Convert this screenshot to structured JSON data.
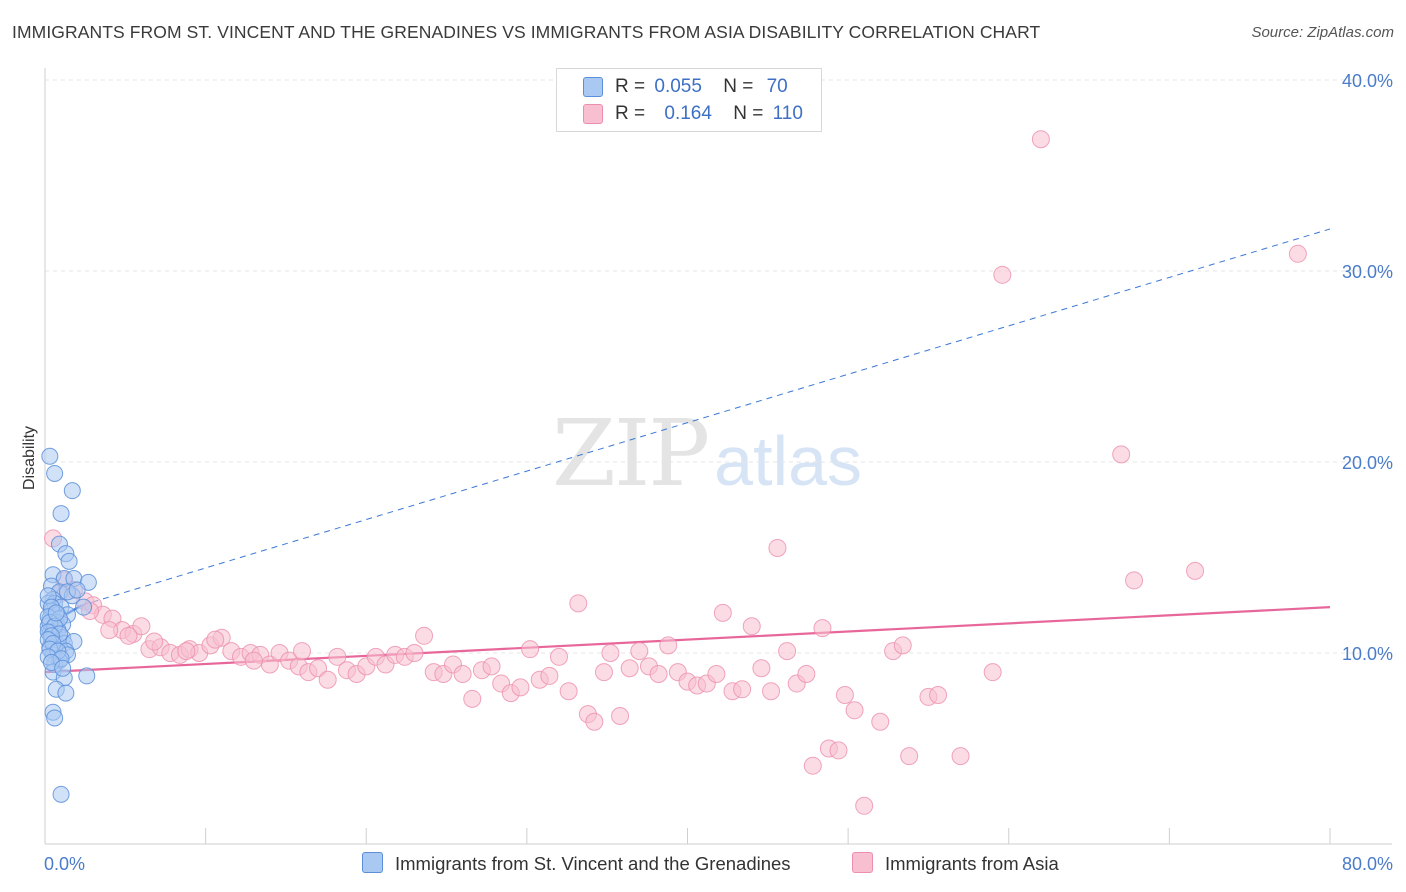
{
  "title": "IMMIGRANTS FROM ST. VINCENT AND THE GRENADINES VS IMMIGRANTS FROM ASIA DISABILITY CORRELATION CHART",
  "source": "Source: ZipAtlas.com",
  "watermark": {
    "zip": "ZIP",
    "atlas": "atlas"
  },
  "legend": {
    "rows": [
      {
        "r_label": "R =",
        "r_value": "0.055",
        "n_label": "N =",
        "n_value": "70"
      },
      {
        "r_label": "R =",
        "r_value": "0.164",
        "n_label": "N =",
        "n_value": "110"
      }
    ]
  },
  "colors": {
    "blue_fill": "#a9c8f2",
    "blue_stroke": "#5b8fd9",
    "blue_line": "#3b78d6",
    "pink_fill": "#f7bfd0",
    "pink_stroke": "#ec8fae",
    "pink_line": "#e8679a",
    "tick_label": "#4a7cc9"
  },
  "chart_data": {
    "type": "scatter",
    "title": "IMMIGRANTS FROM ST. VINCENT AND THE GRENADINES VS IMMIGRANTS FROM ASIA DISABILITY CORRELATION CHART",
    "xlabel": "",
    "ylabel": "Disability",
    "xlim": [
      0,
      80
    ],
    "ylim": [
      0,
      42
    ],
    "x_tick_labels": [
      "0.0%",
      "80.0%"
    ],
    "y_ticks": [
      10,
      20,
      30,
      40
    ],
    "y_tick_labels": [
      "10.0%",
      "20.0%",
      "30.0%",
      "40.0%"
    ],
    "grid": true,
    "legend_position": "top-center",
    "series": [
      {
        "name": "Immigrants from St. Vincent and the Grenadines",
        "r": 0.055,
        "n": 70,
        "trend": {
          "x": [
            0,
            2.3
          ],
          "y": [
            11.4,
            12.5
          ]
        },
        "trend_extension": {
          "x": [
            2.3,
            80
          ],
          "y": [
            12.5,
            32.2
          ]
        },
        "points": [
          [
            0.3,
            20.3
          ],
          [
            0.6,
            19.4
          ],
          [
            1.7,
            18.5
          ],
          [
            1.0,
            17.3
          ],
          [
            0.9,
            15.7
          ],
          [
            1.3,
            15.2
          ],
          [
            1.5,
            14.8
          ],
          [
            0.5,
            14.1
          ],
          [
            1.2,
            13.9
          ],
          [
            1.8,
            13.9
          ],
          [
            2.7,
            13.7
          ],
          [
            0.4,
            13.5
          ],
          [
            0.9,
            13.2
          ],
          [
            1.7,
            13.0
          ],
          [
            0.5,
            12.8
          ],
          [
            0.2,
            12.6
          ],
          [
            0.6,
            12.6
          ],
          [
            1.0,
            12.4
          ],
          [
            2.4,
            12.4
          ],
          [
            0.4,
            12.2
          ],
          [
            0.8,
            12.0
          ],
          [
            1.4,
            12.0
          ],
          [
            0.3,
            11.8
          ],
          [
            0.7,
            11.6
          ],
          [
            1.1,
            11.5
          ],
          [
            0.2,
            11.4
          ],
          [
            0.5,
            11.3
          ],
          [
            0.8,
            11.2
          ],
          [
            0.3,
            11.0
          ],
          [
            0.6,
            10.9
          ],
          [
            1.1,
            10.8
          ],
          [
            0.4,
            10.7
          ],
          [
            0.7,
            10.5
          ],
          [
            1.2,
            10.5
          ],
          [
            1.8,
            10.6
          ],
          [
            0.3,
            10.3
          ],
          [
            0.6,
            10.2
          ],
          [
            1.3,
            10.1
          ],
          [
            0.5,
            9.9
          ],
          [
            1.4,
            9.9
          ],
          [
            0.9,
            9.6
          ],
          [
            0.6,
            9.4
          ],
          [
            0.5,
            9.0
          ],
          [
            2.6,
            8.8
          ],
          [
            1.2,
            8.7
          ],
          [
            0.7,
            8.1
          ],
          [
            1.3,
            7.9
          ],
          [
            0.5,
            6.9
          ],
          [
            0.6,
            6.6
          ],
          [
            1.0,
            2.6
          ],
          [
            0.2,
            13.0
          ],
          [
            0.4,
            12.4
          ],
          [
            0.2,
            11.9
          ],
          [
            0.9,
            11.8
          ],
          [
            0.3,
            11.6
          ],
          [
            0.6,
            11.4
          ],
          [
            0.2,
            11.1
          ],
          [
            0.9,
            11.0
          ],
          [
            0.4,
            10.9
          ],
          [
            0.2,
            10.7
          ],
          [
            0.5,
            10.5
          ],
          [
            0.3,
            10.2
          ],
          [
            0.8,
            10.1
          ],
          [
            0.2,
            9.8
          ],
          [
            1.0,
            9.7
          ],
          [
            0.4,
            9.5
          ],
          [
            1.4,
            13.2
          ],
          [
            2.0,
            13.3
          ],
          [
            0.7,
            12.1
          ],
          [
            1.1,
            9.2
          ]
        ]
      },
      {
        "name": "Immigrants from Asia",
        "r": 0.164,
        "n": 110,
        "trend": {
          "x": [
            0,
            80
          ],
          "y": [
            9.0,
            12.4
          ]
        },
        "points": [
          [
            0.5,
            16.0
          ],
          [
            1.2,
            13.8
          ],
          [
            1.8,
            13.3
          ],
          [
            2.5,
            12.7
          ],
          [
            3.0,
            12.5
          ],
          [
            3.6,
            12.0
          ],
          [
            4.2,
            11.8
          ],
          [
            4.8,
            11.2
          ],
          [
            5.5,
            11.0
          ],
          [
            6.0,
            11.4
          ],
          [
            5.2,
            10.9
          ],
          [
            6.5,
            10.2
          ],
          [
            7.2,
            10.3
          ],
          [
            7.8,
            10.0
          ],
          [
            8.4,
            9.9
          ],
          [
            9.0,
            10.2
          ],
          [
            9.6,
            10.0
          ],
          [
            10.3,
            10.4
          ],
          [
            11.0,
            10.8
          ],
          [
            11.6,
            10.1
          ],
          [
            12.2,
            9.8
          ],
          [
            12.8,
            10.0
          ],
          [
            13.4,
            9.9
          ],
          [
            14.0,
            9.4
          ],
          [
            14.6,
            10.0
          ],
          [
            15.2,
            9.6
          ],
          [
            15.8,
            9.3
          ],
          [
            16.4,
            9.0
          ],
          [
            17.0,
            9.2
          ],
          [
            17.6,
            8.6
          ],
          [
            18.2,
            9.8
          ],
          [
            18.8,
            9.1
          ],
          [
            19.4,
            8.9
          ],
          [
            20.0,
            9.3
          ],
          [
            20.6,
            9.8
          ],
          [
            21.2,
            9.4
          ],
          [
            21.8,
            9.9
          ],
          [
            22.4,
            9.8
          ],
          [
            23.0,
            10.0
          ],
          [
            23.6,
            10.9
          ],
          [
            24.2,
            9.0
          ],
          [
            24.8,
            8.9
          ],
          [
            25.4,
            9.4
          ],
          [
            26.0,
            8.9
          ],
          [
            26.6,
            7.6
          ],
          [
            27.2,
            9.1
          ],
          [
            27.8,
            9.3
          ],
          [
            28.4,
            8.4
          ],
          [
            29.0,
            7.9
          ],
          [
            29.6,
            8.2
          ],
          [
            30.2,
            10.2
          ],
          [
            30.8,
            8.6
          ],
          [
            31.4,
            8.8
          ],
          [
            32.0,
            9.8
          ],
          [
            32.6,
            8.0
          ],
          [
            33.2,
            12.6
          ],
          [
            33.8,
            6.8
          ],
          [
            34.2,
            6.4
          ],
          [
            34.8,
            9.0
          ],
          [
            35.2,
            10.0
          ],
          [
            35.8,
            6.7
          ],
          [
            36.4,
            9.2
          ],
          [
            37.0,
            10.1
          ],
          [
            37.6,
            9.3
          ],
          [
            38.2,
            8.9
          ],
          [
            38.8,
            10.4
          ],
          [
            39.4,
            9.0
          ],
          [
            40.0,
            8.5
          ],
          [
            40.6,
            8.3
          ],
          [
            41.2,
            8.4
          ],
          [
            41.8,
            8.9
          ],
          [
            42.2,
            12.1
          ],
          [
            42.8,
            8.0
          ],
          [
            43.4,
            8.1
          ],
          [
            44.0,
            11.4
          ],
          [
            44.6,
            9.2
          ],
          [
            45.2,
            8.0
          ],
          [
            45.6,
            15.5
          ],
          [
            46.2,
            10.1
          ],
          [
            46.8,
            8.4
          ],
          [
            47.4,
            8.9
          ],
          [
            47.8,
            4.1
          ],
          [
            48.4,
            11.3
          ],
          [
            48.8,
            5.0
          ],
          [
            49.4,
            4.9
          ],
          [
            49.8,
            7.8
          ],
          [
            50.4,
            7.0
          ],
          [
            51.0,
            2.0
          ],
          [
            52.0,
            6.4
          ],
          [
            52.8,
            10.1
          ],
          [
            53.4,
            10.4
          ],
          [
            53.8,
            4.6
          ],
          [
            55.0,
            7.7
          ],
          [
            55.6,
            7.8
          ],
          [
            57.0,
            4.6
          ],
          [
            59.0,
            9.0
          ],
          [
            59.6,
            29.8
          ],
          [
            62.0,
            36.9
          ],
          [
            67.0,
            20.4
          ],
          [
            67.8,
            13.8
          ],
          [
            71.6,
            14.3
          ],
          [
            78.0,
            30.9
          ],
          [
            0.9,
            13.1
          ],
          [
            2.8,
            12.2
          ],
          [
            4.0,
            11.2
          ],
          [
            6.8,
            10.6
          ],
          [
            8.8,
            10.1
          ],
          [
            10.6,
            10.7
          ],
          [
            13.0,
            9.6
          ],
          [
            16.0,
            10.1
          ]
        ]
      }
    ]
  },
  "bottom_legend": {
    "blue_label": "Immigrants from St. Vincent and the Grenadines",
    "pink_label": "Immigrants from Asia"
  }
}
